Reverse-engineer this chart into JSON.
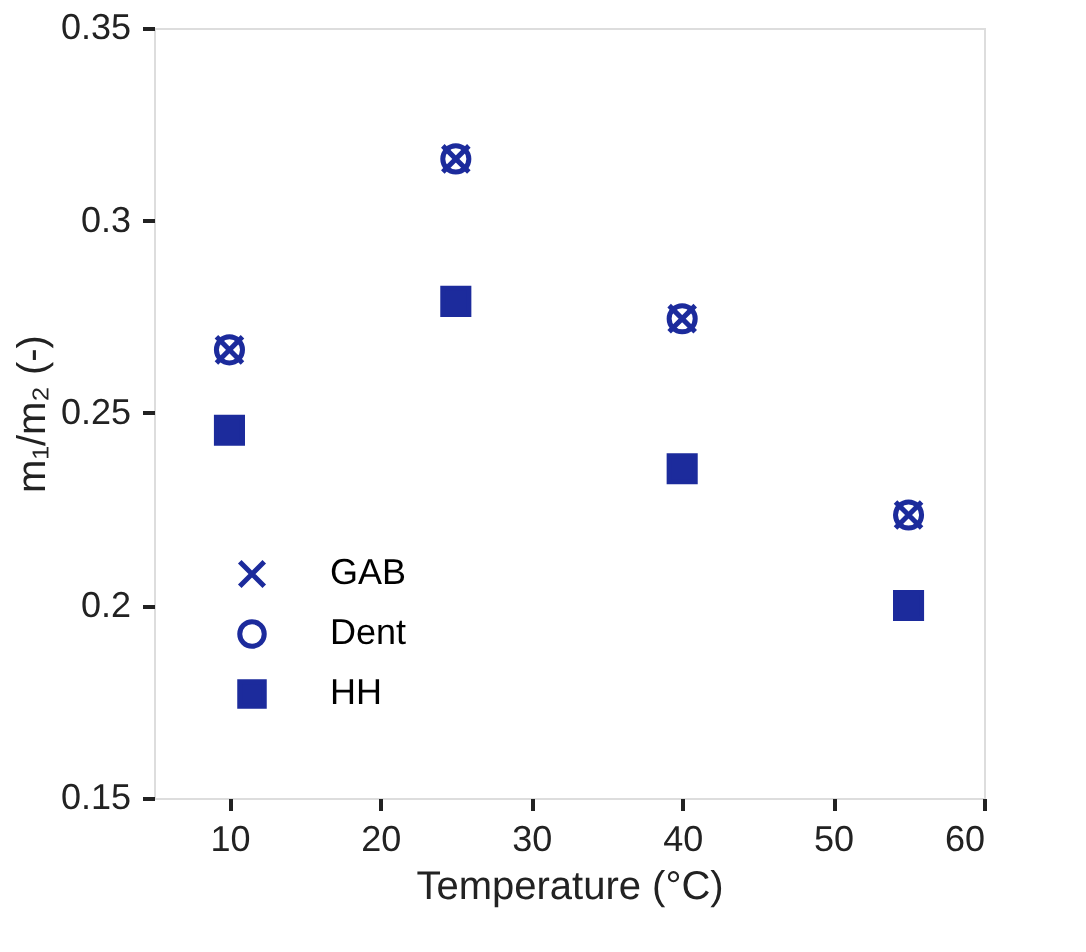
{
  "chart_data": {
    "type": "scatter",
    "xlabel": "Temperature (°C)",
    "ylabel": "m₁/m₂ (-)",
    "xlim": [
      5,
      60
    ],
    "xticks": [
      10,
      20,
      30,
      40,
      50,
      60
    ],
    "ylim": [
      0.15,
      0.35
    ],
    "yticks": [
      0.15,
      0.2,
      0.25,
      0.3,
      0.35
    ],
    "grid": false,
    "legend": "bottom left",
    "series": [
      {
        "name": "GAB",
        "color": "#1c2b9c",
        "marker": "cross",
        "x": [
          10,
          25,
          40,
          55
        ],
        "values": [
          0.2664,
          0.316,
          0.2745,
          0.2235
        ]
      },
      {
        "name": "Dent",
        "color": "#1c2b9c",
        "marker": "circle",
        "x": [
          10,
          25,
          40,
          55
        ],
        "values": [
          0.2664,
          0.316,
          0.2745,
          0.2235
        ]
      },
      {
        "name": "HH",
        "color": "#1c2b9c",
        "marker": "square",
        "x": [
          10,
          25,
          40,
          55
        ],
        "values": [
          0.2455,
          0.279,
          0.2355,
          0.2
        ]
      }
    ]
  }
}
